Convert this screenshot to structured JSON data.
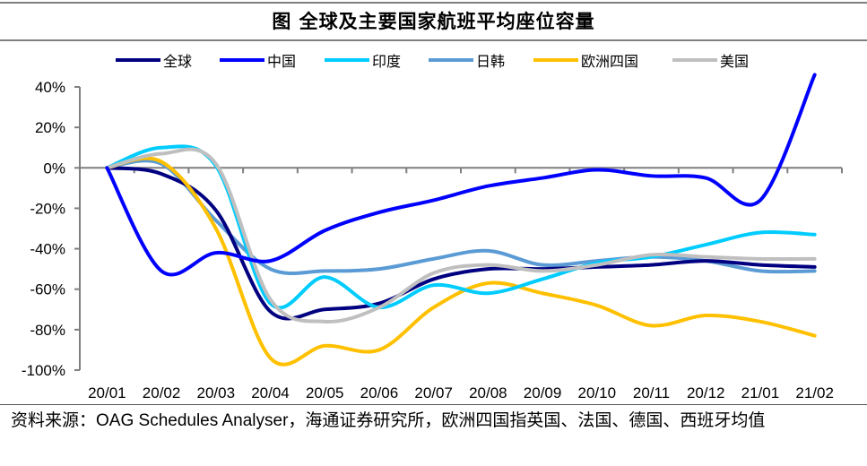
{
  "header": {
    "title": "图  全球及主要国家航班平均座位容量"
  },
  "source_note": {
    "prefix": "资料来源：",
    "source": "OAG Schedules Analyser",
    "rest": "，海通证券研究所，欧洲四国指英国、法国、德国、西班牙均值"
  },
  "chart_data": {
    "type": "line",
    "title": "全球及主要国家航班平均座位容量",
    "xlabel": "",
    "ylabel": "",
    "categories": [
      "20/01",
      "20/02",
      "20/03",
      "20/04",
      "20/05",
      "20/06",
      "20/07",
      "20/08",
      "20/09",
      "20/10",
      "20/11",
      "20/12",
      "21/01",
      "21/02"
    ],
    "ylim": [
      -100,
      40
    ],
    "yticks": [
      40,
      20,
      0,
      -20,
      -40,
      -60,
      -80,
      -100
    ],
    "ytick_labels": [
      "40%",
      "20%",
      "0%",
      "-20%",
      "-40%",
      "-60%",
      "-80%",
      "-100%"
    ],
    "y_unit": "%",
    "grid": false,
    "smooth": true,
    "legend_position": "top",
    "series": [
      {
        "name": "全球",
        "color": "#000080",
        "values": [
          0,
          -3,
          -21,
          -71,
          -70,
          -67,
          -55,
          -50,
          -50,
          -49,
          -48,
          -46,
          -48,
          -49
        ]
      },
      {
        "name": "中国",
        "color": "#0000FF",
        "values": [
          0,
          -51,
          -42,
          -46,
          -31,
          -22,
          -16,
          -9,
          -5,
          -1,
          -4,
          -5,
          -16,
          46
        ]
      },
      {
        "name": "印度",
        "color": "#00CCFF",
        "values": [
          0,
          10,
          1,
          -67,
          -54,
          -69,
          -58,
          -62,
          -55,
          -47,
          -44,
          -38,
          -32,
          -33
        ]
      },
      {
        "name": "日韩",
        "color": "#5B9BD5",
        "values": [
          0,
          2,
          -26,
          -50,
          -51,
          -50,
          -45,
          -41,
          -48,
          -46,
          -44,
          -46,
          -51,
          -51
        ]
      },
      {
        "name": "欧洲四国",
        "color": "#FFC000",
        "values": [
          0,
          3,
          -30,
          -94,
          -88,
          -90,
          -69,
          -57,
          -62,
          -68,
          -78,
          -73,
          -76,
          -83
        ]
      },
      {
        "name": "美国",
        "color": "#BFBFBF",
        "values": [
          0,
          7,
          2,
          -65,
          -76,
          -69,
          -52,
          -48,
          -51,
          -48,
          -43,
          -44,
          -45,
          -45
        ]
      }
    ]
  }
}
